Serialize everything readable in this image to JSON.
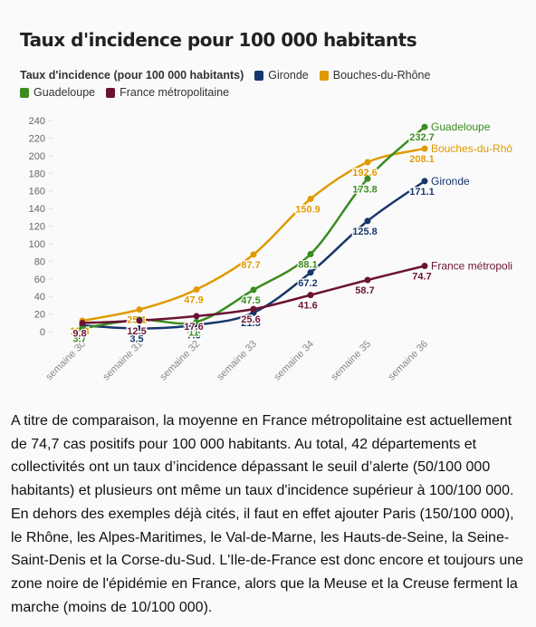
{
  "chart_data": {
    "type": "line",
    "title": "Taux d'incidence pour 100 000 habitants",
    "legend_title": "Taux d'incidence (pour 100 000 habitants)",
    "categories": [
      "semaine 30",
      "semaine 31",
      "semaine 32",
      "semaine 33",
      "semaine 34",
      "semaine 35",
      "semaine 36"
    ],
    "series": [
      {
        "name": "Gironde",
        "color": "#17366b",
        "values": [
          7,
          3.5,
          7.6,
          21.5,
          67.2,
          125.8,
          171.1
        ]
      },
      {
        "name": "Bouches-du-Rhône",
        "color": "#e09a00",
        "values": [
          12.4,
          25.1,
          47.9,
          87.7,
          150.9,
          192.6,
          208.1
        ]
      },
      {
        "name": "Guadeloupe",
        "color": "#3a8c1f",
        "values": [
          3.7,
          13.5,
          11,
          47.5,
          88.1,
          173.8,
          232.7
        ]
      },
      {
        "name": "France métropolitaine",
        "color": "#6b1334",
        "values": [
          9.8,
          12.5,
          17.6,
          25.6,
          41.6,
          58.7,
          74.7
        ]
      }
    ],
    "ylim": [
      0,
      240
    ],
    "yticks": [
      0,
      20,
      40,
      60,
      80,
      100,
      120,
      140,
      160,
      180,
      200,
      220,
      240
    ],
    "grid": false
  },
  "paragraph": "A titre de comparaison, la moyenne en France métropolitaine est actuellement de 74,7 cas positifs pour 100 000 habitants. Au total, 42 départements et collectivités ont un taux d’incidence dépassant le seuil d’alerte (50/100 000 habitants) et plusieurs ont même un taux d'incidence supérieur à 100/100 000. En dehors des exemples déjà cités, il faut en effet ajouter Paris (150/100 000), le Rhône, les Alpes-Maritimes, le Val-de-Marne, les Hauts-de-Seine, la Seine-Saint-Denis et la Corse-du-Sud. L'Ile-de-France est donc encore et toujours une zone noire de l'épidémie en France, alors que la Meuse et la Creuse ferment la marche (moins de 10/100 000)."
}
